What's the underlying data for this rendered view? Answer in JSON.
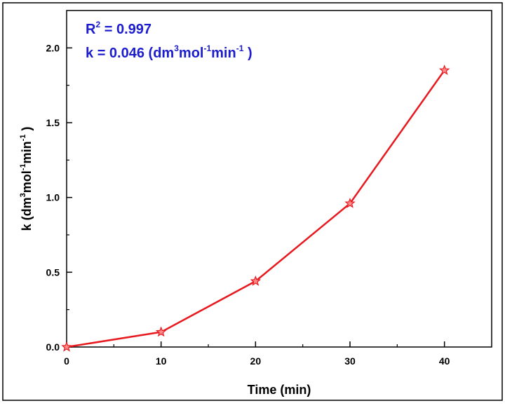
{
  "chart_data": {
    "type": "line",
    "title": "",
    "xlabel": "Time (min)",
    "ylabel": {
      "base": "k (dm",
      "sup1": "3",
      "mid1": "mol",
      "sup2": "-1",
      "mid2": "min",
      "sup3": "-1",
      "end": ")"
    },
    "xlim": [
      0,
      45
    ],
    "ylim": [
      0,
      2.25
    ],
    "xticks": [
      0,
      10,
      20,
      30,
      40
    ],
    "xtick_labels": [
      "0",
      "10",
      "20",
      "30",
      "40"
    ],
    "yticks": [
      0,
      0.5,
      1.0,
      1.5,
      2.0
    ],
    "ytick_labels": [
      "0.0",
      "0.5",
      "1.0",
      "1.5",
      "2.0"
    ],
    "grid": false,
    "series": [
      {
        "color": "#e8191e",
        "marker": "star",
        "x": [
          0,
          10,
          20,
          30,
          40
        ],
        "y": [
          0.0,
          0.1,
          0.44,
          0.96,
          1.85
        ]
      }
    ],
    "annotations": {
      "r2": {
        "label": "R",
        "sup": "2",
        "value": "= 0.997"
      },
      "k": {
        "label": "k",
        "value": "= 0.046",
        "unit_open": "(dm",
        "sup1": "3",
        "mid1": "mol",
        "sup2": "-1",
        "mid2": "min",
        "sup3": "-1",
        "unit_close": ")"
      },
      "color": "#1c1ccf"
    }
  }
}
